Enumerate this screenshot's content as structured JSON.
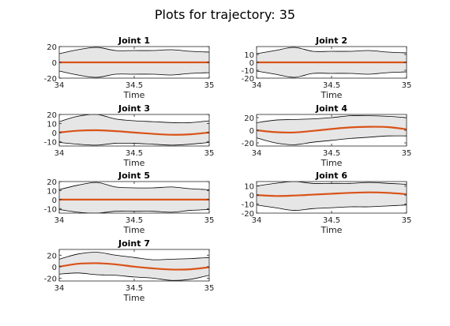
{
  "figure": {
    "title": "Plots for trajectory: 35"
  },
  "chart_data": [
    {
      "type": "line",
      "title": "Joint 1",
      "xlabel": "Time",
      "ylabel": "",
      "xlim": [
        34,
        35
      ],
      "ylim": [
        -20,
        20
      ],
      "xticks": [
        "34",
        "34.5",
        "35"
      ],
      "yticks": [
        "20",
        "0",
        "-20"
      ],
      "ytick_values": [
        20,
        0,
        -20
      ],
      "grid": false,
      "colors": {
        "mean": "#d95319",
        "band_fill": "#e6e6e6",
        "band_edge": "#000000"
      },
      "series": [
        {
          "x": [
            34.0,
            34.125,
            34.25,
            34.375,
            34.5,
            34.625,
            34.75,
            34.875,
            35.0
          ],
          "values": [
            0,
            0,
            0,
            0,
            0,
            0,
            0,
            0,
            0
          ],
          "upper": [
            11,
            16,
            19,
            15,
            15,
            15,
            16,
            14,
            13
          ],
          "lower": [
            -11,
            -16,
            -19,
            -15,
            -15,
            -15,
            -16,
            -14,
            -13
          ]
        }
      ]
    },
    {
      "type": "line",
      "title": "Joint 2",
      "xlabel": "Time",
      "ylabel": "",
      "xlim": [
        34,
        35
      ],
      "ylim": [
        -20,
        20
      ],
      "xticks": [
        "34",
        "34.5",
        "35"
      ],
      "yticks": [
        "10",
        "0",
        "-10",
        "-20"
      ],
      "ytick_values": [
        10,
        0,
        -10,
        -20
      ],
      "grid": false,
      "colors": {
        "mean": "#d95319",
        "band_fill": "#e6e6e6",
        "band_edge": "#000000"
      },
      "series": [
        {
          "x": [
            34.0,
            34.125,
            34.25,
            34.375,
            34.5,
            34.625,
            34.75,
            34.875,
            35.0
          ],
          "values": [
            0,
            0,
            0,
            0,
            0,
            0,
            0,
            0,
            0
          ],
          "upper": [
            11,
            15,
            19,
            14,
            14,
            14,
            15,
            13,
            12
          ],
          "lower": [
            -11,
            -15,
            -19,
            -14,
            -14,
            -14,
            -15,
            -13,
            -12
          ]
        }
      ]
    },
    {
      "type": "line",
      "title": "Joint 3",
      "xlabel": "Time",
      "ylabel": "",
      "xlim": [
        34,
        35
      ],
      "ylim": [
        -15,
        20
      ],
      "xticks": [
        "34",
        "34.5",
        "35"
      ],
      "yticks": [
        "20",
        "10",
        "0",
        "-10"
      ],
      "ytick_values": [
        20,
        10,
        0,
        -10
      ],
      "grid": false,
      "colors": {
        "mean": "#d95319",
        "band_fill": "#e6e6e6",
        "band_edge": "#000000"
      },
      "series": [
        {
          "x": [
            34.0,
            34.125,
            34.25,
            34.375,
            34.5,
            34.625,
            34.75,
            34.875,
            35.0
          ],
          "values": [
            0,
            2,
            2.5,
            1.5,
            0,
            -1.5,
            -2.5,
            -2,
            0
          ],
          "upper": [
            12,
            18,
            20,
            15,
            13,
            12,
            11,
            11,
            13
          ],
          "lower": [
            -11,
            -13,
            -14,
            -12,
            -12,
            -13,
            -14,
            -13,
            -11
          ]
        }
      ]
    },
    {
      "type": "line",
      "title": "Joint 4",
      "xlabel": "Time",
      "ylabel": "",
      "xlim": [
        34,
        35
      ],
      "ylim": [
        -25,
        25
      ],
      "xticks": [
        "34",
        "34.5",
        "35"
      ],
      "yticks": [
        "20",
        "0",
        "-20"
      ],
      "ytick_values": [
        20,
        0,
        -20
      ],
      "grid": false,
      "colors": {
        "mean": "#d95319",
        "band_fill": "#e6e6e6",
        "band_edge": "#000000"
      },
      "series": [
        {
          "x": [
            34.0,
            34.125,
            34.25,
            34.375,
            34.5,
            34.625,
            34.75,
            34.875,
            35.0
          ],
          "values": [
            0,
            -3,
            -3.5,
            -1,
            2,
            4.5,
            5.5,
            5,
            1.5
          ],
          "upper": [
            12,
            16,
            17,
            18,
            20,
            23,
            23,
            22,
            20
          ],
          "lower": [
            -12,
            -20,
            -23,
            -19,
            -16,
            -13,
            -11,
            -9,
            -9
          ]
        }
      ]
    },
    {
      "type": "line",
      "title": "Joint 5",
      "xlabel": "Time",
      "ylabel": "",
      "xlim": [
        34,
        35
      ],
      "ylim": [
        -15,
        20
      ],
      "xticks": [
        "34",
        "34.5",
        "35"
      ],
      "yticks": [
        "20",
        "10",
        "0",
        "-10"
      ],
      "ytick_values": [
        20,
        10,
        0,
        -10
      ],
      "grid": false,
      "colors": {
        "mean": "#d95319",
        "band_fill": "#e6e6e6",
        "band_edge": "#000000"
      },
      "series": [
        {
          "x": [
            34.0,
            34.125,
            34.25,
            34.375,
            34.5,
            34.625,
            34.75,
            34.875,
            35.0
          ],
          "values": [
            0,
            0,
            0,
            0,
            0,
            0,
            0,
            0,
            0
          ],
          "upper": [
            11,
            16,
            19,
            14,
            13,
            13,
            14,
            12,
            11
          ],
          "lower": [
            -11,
            -14,
            -15,
            -13,
            -13,
            -13,
            -14,
            -12,
            -11
          ]
        }
      ]
    },
    {
      "type": "line",
      "title": "Joint 6",
      "xlabel": "Time",
      "ylabel": "",
      "xlim": [
        34,
        35
      ],
      "ylim": [
        -20,
        15
      ],
      "xticks": [
        "34",
        "34.5",
        "35"
      ],
      "yticks": [
        "10",
        "0",
        "-10",
        "-20"
      ],
      "ytick_values": [
        10,
        0,
        -10,
        -20
      ],
      "grid": false,
      "colors": {
        "mean": "#d95319",
        "band_fill": "#e6e6e6",
        "band_edge": "#000000"
      },
      "series": [
        {
          "x": [
            34.0,
            34.125,
            34.25,
            34.375,
            34.5,
            34.625,
            34.75,
            34.875,
            35.0
          ],
          "values": [
            0,
            -1,
            -0.5,
            0.5,
            1.5,
            2.5,
            3,
            2.5,
            1
          ],
          "upper": [
            10,
            13,
            15,
            13,
            13,
            13,
            14,
            13,
            12
          ],
          "lower": [
            -11,
            -14,
            -17,
            -15,
            -14,
            -13,
            -13,
            -12,
            -11
          ]
        }
      ]
    },
    {
      "type": "line",
      "title": "Joint 7",
      "xlabel": "Time",
      "ylabel": "",
      "xlim": [
        34,
        35
      ],
      "ylim": [
        -25,
        30
      ],
      "xticks": [
        "34",
        "34.5",
        "35"
      ],
      "yticks": [
        "20",
        "0",
        "-20"
      ],
      "ytick_values": [
        20,
        0,
        -20
      ],
      "grid": false,
      "colors": {
        "mean": "#d95319",
        "band_fill": "#e6e6e6",
        "band_edge": "#000000"
      },
      "series": [
        {
          "x": [
            34.0,
            34.125,
            34.25,
            34.375,
            34.5,
            34.625,
            34.75,
            34.875,
            35.0
          ],
          "values": [
            0,
            5,
            6,
            4,
            0,
            -3,
            -5,
            -4.5,
            -1
          ],
          "upper": [
            13,
            22,
            25,
            20,
            16,
            12,
            13,
            14,
            16
          ],
          "lower": [
            -13,
            -11,
            -14,
            -15,
            -18,
            -20,
            -24,
            -22,
            -15
          ]
        }
      ]
    }
  ]
}
